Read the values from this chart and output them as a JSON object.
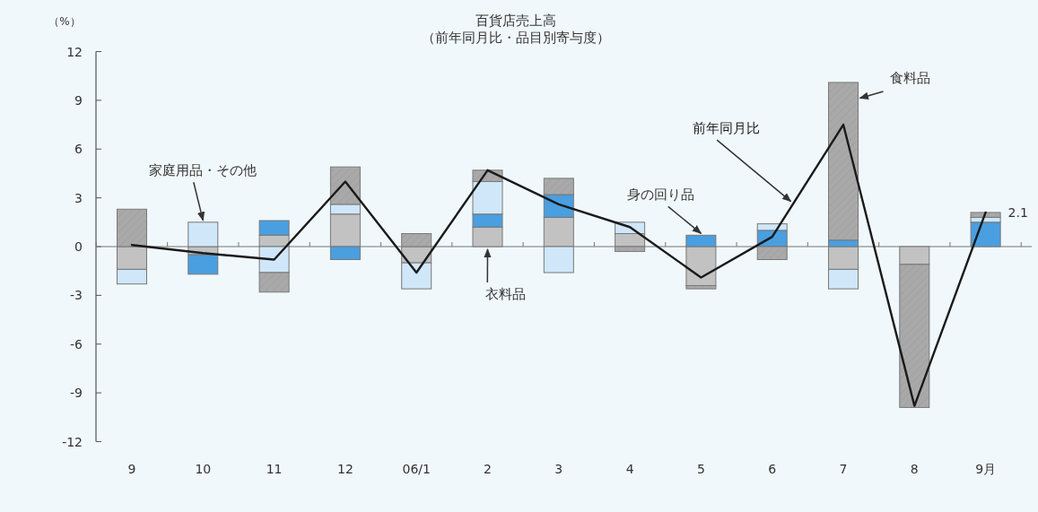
{
  "chart_data": {
    "type": "bar",
    "title": "百貨店売上高",
    "subtitle": "（前年同月比・品目別寄与度）",
    "ylabel": "（%）",
    "categories": [
      "9",
      "10",
      "11",
      "12",
      "06/1",
      "2",
      "3",
      "4",
      "5",
      "6",
      "7",
      "8",
      "9月"
    ],
    "stacked": true,
    "series": [
      {
        "name": "衣料品",
        "color": "#c2c2c2",
        "values": [
          -1.4,
          -0.5,
          0.7,
          2.0,
          -1.0,
          1.2,
          1.8,
          0.8,
          -2.4,
          0,
          -1.4,
          -1.1,
          0
        ]
      },
      {
        "name": "身の回り品",
        "color": "#4a9fe0",
        "values": [
          0,
          -1.2,
          0.9,
          -0.8,
          0,
          0.8,
          1.4,
          0,
          0.7,
          1.0,
          0.4,
          0,
          1.5
        ]
      },
      {
        "name": "家庭用品・その他",
        "color": "#cfe7f9",
        "values": [
          -0.9,
          1.5,
          -1.6,
          0.6,
          -1.6,
          2.0,
          -1.6,
          0.7,
          0,
          0.4,
          -1.2,
          0,
          0.3
        ]
      },
      {
        "name": "食料品",
        "color": "#a9a9a9",
        "values": [
          2.3,
          0,
          -1.2,
          2.3,
          0.8,
          0.7,
          1.0,
          -0.3,
          -0.2,
          -0.8,
          9.7,
          -8.8,
          0.3
        ]
      },
      {
        "name": "前年同月比",
        "type": "line",
        "color": "#1a1a1a",
        "values": [
          0.1,
          -0.4,
          -0.8,
          4.0,
          -1.6,
          4.7,
          2.6,
          1.2,
          -1.9,
          0.6,
          7.5,
          -9.8,
          2.1
        ],
        "value_labels": [
          null,
          null,
          null,
          null,
          null,
          null,
          null,
          null,
          null,
          null,
          null,
          null,
          "2.1"
        ]
      }
    ],
    "ylim": [
      -12,
      12
    ],
    "yticks": [
      -12,
      -9,
      -6,
      -3,
      0,
      3,
      6,
      9,
      12
    ]
  }
}
